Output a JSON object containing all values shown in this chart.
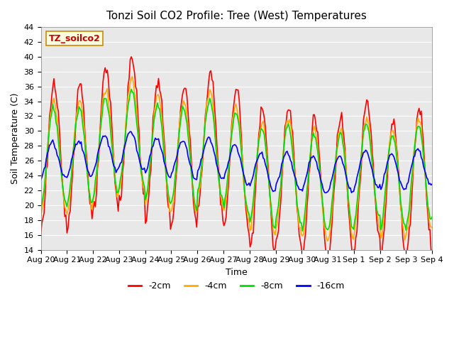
{
  "title": "Tonzi Soil CO2 Profile: Tree (West) Temperatures",
  "xlabel": "Time",
  "ylabel": "Soil Temperature (C)",
  "ylim": [
    14,
    44
  ],
  "yticks": [
    14,
    16,
    18,
    20,
    22,
    24,
    26,
    28,
    30,
    32,
    34,
    36,
    38,
    40,
    42,
    44
  ],
  "x_labels": [
    "Aug 20",
    "Aug 21",
    "Aug 22",
    "Aug 23",
    "Aug 24",
    "Aug 25",
    "Aug 26",
    "Aug 27",
    "Aug 28",
    "Aug 29",
    "Aug 30",
    "Aug 31",
    "Sep 1",
    "Sep 2",
    "Sep 3",
    "Sep 4"
  ],
  "colors": {
    "-2cm": "#ff0000",
    "-4cm": "#ffaa00",
    "-8cm": "#00dd00",
    "-16cm": "#0000ff"
  },
  "legend_label": "TZ_soilco2",
  "background_color": "#e8e8e8",
  "plot_bg": "#e8e8e8",
  "line_width": 1.2
}
